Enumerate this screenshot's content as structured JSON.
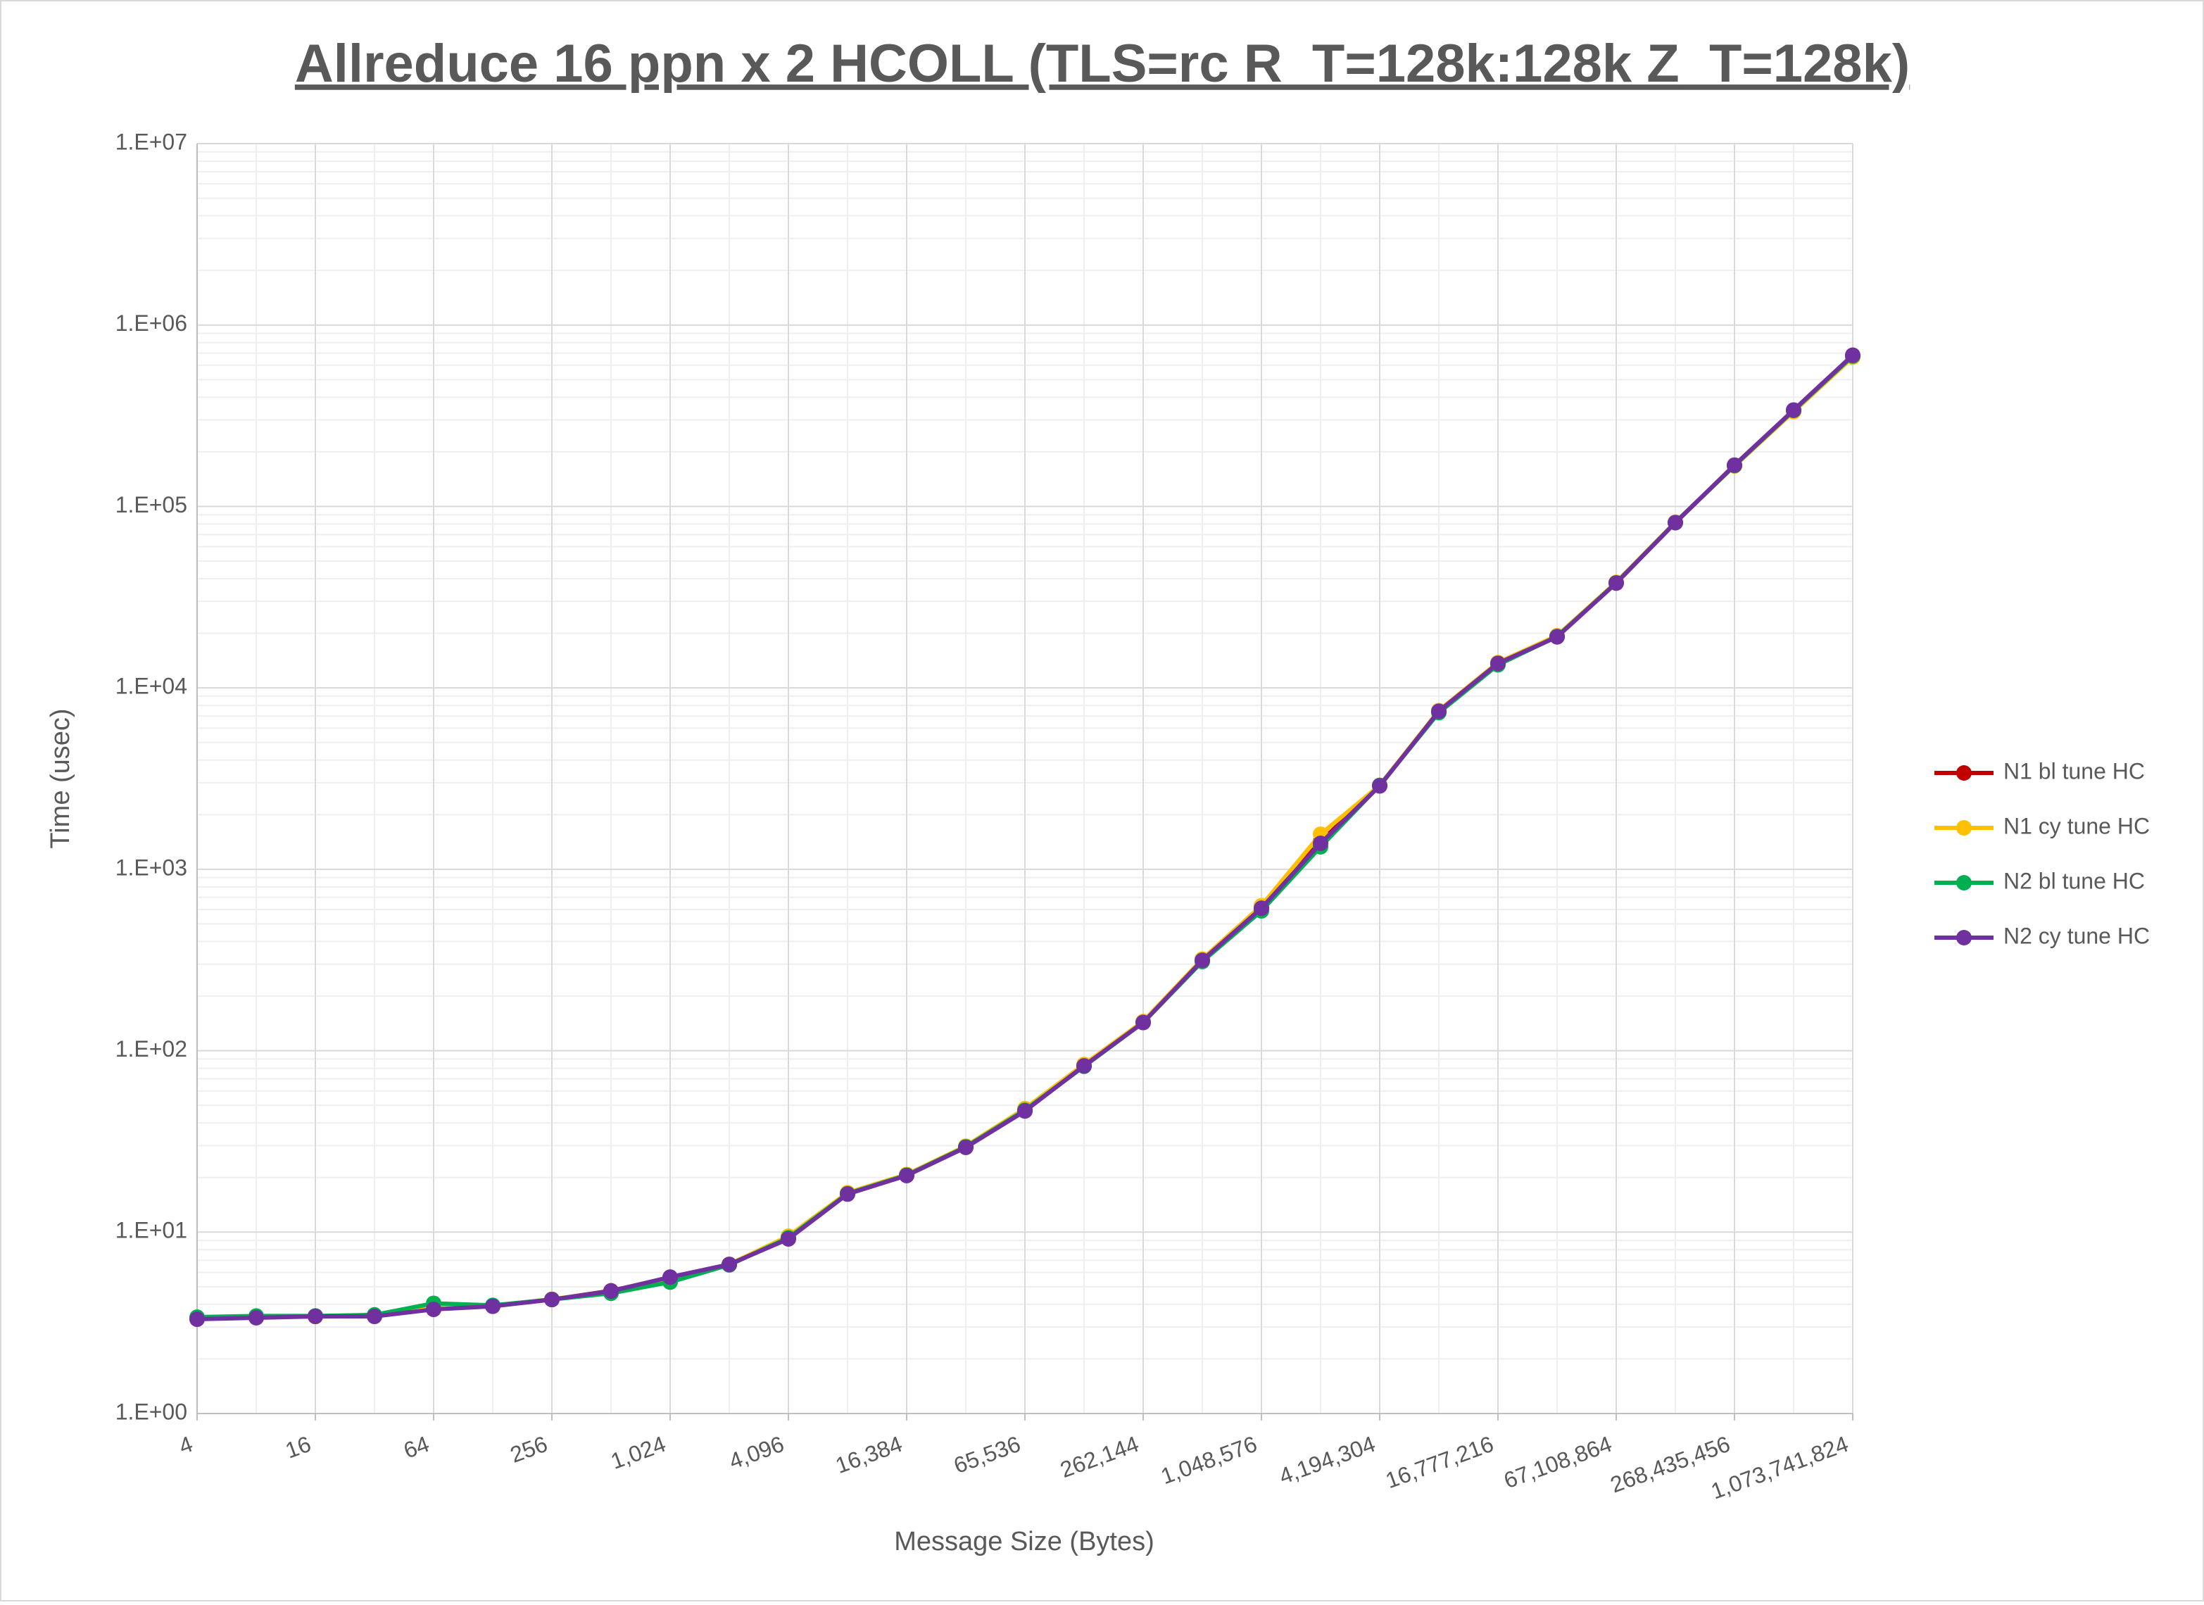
{
  "chart_data": {
    "type": "line",
    "title": "Allreduce 16 ppn x 2 HCOLL (TLS=rc R_T=128k:128k Z_T=128k)",
    "x_label": "Message Size (Bytes)",
    "y_label": "Time (usec)",
    "xscale": "log",
    "yscale": "log",
    "grid": true,
    "legend": "right",
    "x": [
      4,
      8,
      16,
      32,
      64,
      128,
      256,
      512,
      1024,
      2048,
      4096,
      8192,
      16384,
      32768,
      65536,
      131072,
      262144,
      524288,
      1048576,
      2097152,
      4194304,
      8388608,
      16777216,
      33554432,
      67108864,
      134217728,
      268435456,
      536870912,
      1073741824
    ],
    "xlim": [
      4,
      1073741824
    ],
    "xticks": [
      4,
      16,
      64,
      256,
      {
        "value": 1024,
        "label": "1,024"
      },
      {
        "value": 4096,
        "label": "4,096"
      },
      {
        "value": 16384,
        "label": "16,384"
      },
      {
        "value": 65536,
        "label": "65,536"
      },
      {
        "value": 262144,
        "label": "262,144"
      },
      {
        "value": 1048576,
        "label": "1,048,576"
      },
      {
        "value": 4194304,
        "label": "4,194,304"
      },
      {
        "value": 16777216,
        "label": "16,777,216"
      },
      {
        "value": 67108864,
        "label": "67,108,864"
      },
      {
        "value": 268435456,
        "label": "268,435,456"
      },
      {
        "value": 1073741824,
        "label": "1,073,741,824"
      }
    ],
    "ylim": [
      1,
      10000000
    ],
    "yticks": [
      {
        "value": 1,
        "label": "1.E+00"
      },
      {
        "value": 10,
        "label": "1.E+01"
      },
      {
        "value": 100,
        "label": "1.E+02"
      },
      {
        "value": 1000,
        "label": "1.E+03"
      },
      {
        "value": 10000,
        "label": "1.E+04"
      },
      {
        "value": 100000,
        "label": "1.E+05"
      },
      {
        "value": 1000000,
        "label": "1.E+06"
      },
      {
        "value": 10000000,
        "label": "1.E+07"
      }
    ],
    "series": [
      {
        "name": "N1 bl tune HC",
        "color": "#c00000",
        "values": [
          3.35,
          3.4,
          3.45,
          3.45,
          3.8,
          3.92,
          4.25,
          4.75,
          5.6,
          6.6,
          9.3,
          16.4,
          20.6,
          29.5,
          47,
          83,
          144,
          318,
          620,
          1420,
          2900,
          7400,
          13700,
          19300,
          38000,
          81500,
          168000,
          335000,
          670000
        ]
      },
      {
        "name": "N1 cy tune HC",
        "color": "#ffc000",
        "values": [
          3.35,
          3.4,
          3.42,
          3.45,
          3.8,
          3.92,
          4.27,
          4.7,
          5.6,
          6.65,
          9.5,
          16.5,
          20.8,
          29.8,
          48,
          84,
          145,
          320,
          630,
          1560,
          2900,
          7500,
          13800,
          19400,
          38200,
          82000,
          167000,
          333000,
          665000
        ]
      },
      {
        "name": "N2 bl tune HC",
        "color": "#00b050",
        "values": [
          3.4,
          3.45,
          3.45,
          3.5,
          4.05,
          3.95,
          4.25,
          4.6,
          5.3,
          6.6,
          9.3,
          16.3,
          20.6,
          29.5,
          47,
          82,
          143,
          310,
          590,
          1330,
          2900,
          7300,
          13400,
          19200,
          37900,
          81500,
          168000,
          338000,
          675000
        ]
      },
      {
        "name": "N2 cy tune HC",
        "color": "#7030a0",
        "values": [
          3.31,
          3.37,
          3.43,
          3.43,
          3.75,
          3.9,
          4.25,
          4.73,
          5.65,
          6.64,
          9.17,
          16.2,
          20.5,
          29.3,
          46.5,
          82.5,
          143,
          315,
          610,
          1390,
          2880,
          7430,
          13650,
          19100,
          37800,
          81400,
          169000,
          340000,
          682000
        ]
      }
    ]
  }
}
